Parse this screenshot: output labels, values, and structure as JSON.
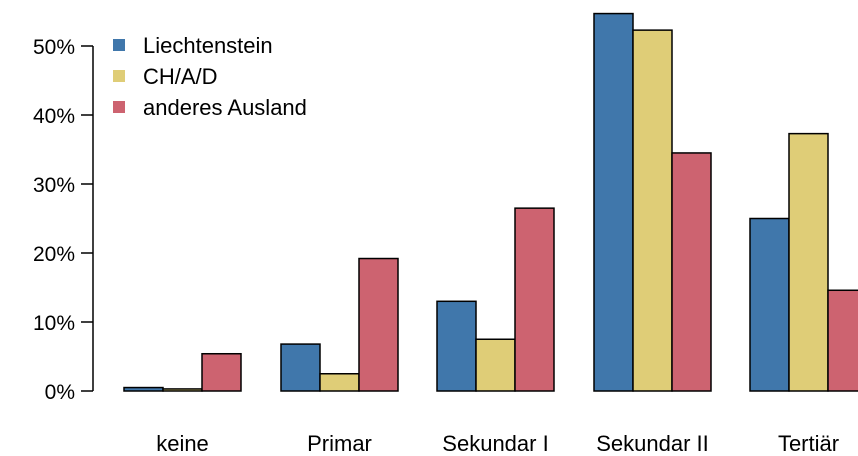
{
  "chart_data": {
    "type": "bar",
    "title": "",
    "xlabel": "",
    "ylabel": "",
    "categories": [
      "keine",
      "Primar",
      "Sekundar I",
      "Sekundar II",
      "Tertiär"
    ],
    "series": [
      {
        "name": "Liechtenstein",
        "color": "#4077ab",
        "values": [
          0.5,
          6.8,
          13.0,
          54.7,
          25.0
        ]
      },
      {
        "name": "CH/A/D",
        "color": "#dfcd77",
        "values": [
          0.3,
          2.5,
          7.5,
          52.3,
          37.3
        ]
      },
      {
        "name": "anderes Ausland",
        "color": "#cd6370",
        "values": [
          5.4,
          19.2,
          26.5,
          34.5,
          14.6
        ]
      }
    ],
    "ylim": [
      0,
      55
    ],
    "yticks": [
      0,
      10,
      20,
      30,
      40,
      50
    ],
    "ytick_labels": [
      "0%",
      "10%",
      "20%",
      "30%",
      "40%",
      "50%"
    ],
    "grid": false,
    "legend_position": "top-left"
  }
}
